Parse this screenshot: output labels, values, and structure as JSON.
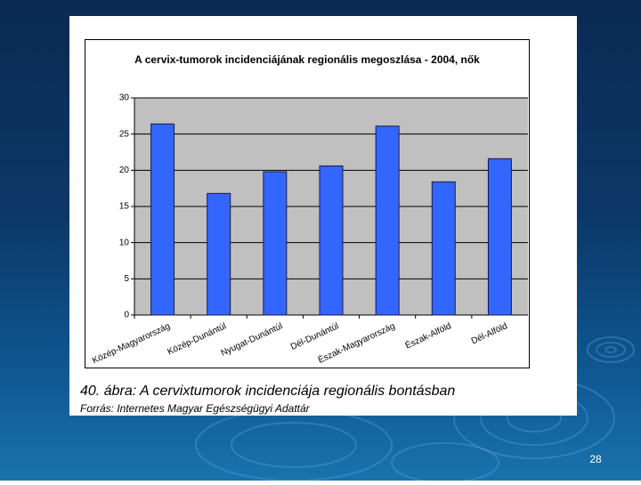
{
  "chart_data": {
    "type": "bar",
    "title": "A cervix-tumorok incidenciájának regionális megoszlása - 2004, nők",
    "categories": [
      "Közép-Magyarország",
      "Közép-Dunántúl",
      "Nyugat-Dunántúl",
      "Dél-Dunántúl",
      "Észak-Magyarország",
      "Észak-Alföld",
      "Dél-Alföld"
    ],
    "values": [
      26.4,
      16.8,
      19.8,
      20.6,
      26.1,
      18.4,
      21.6
    ],
    "color": "#3366ff",
    "ylim": [
      0,
      30
    ],
    "yticks": [
      0,
      5,
      10,
      15,
      20,
      25,
      30
    ],
    "grid": true
  },
  "caption": "40. ábra: A cervixtumorok incidenciája regionális bontásban",
  "source": "Forrás: Internetes Magyar Egészségügyi Adattár",
  "page_number": "28"
}
